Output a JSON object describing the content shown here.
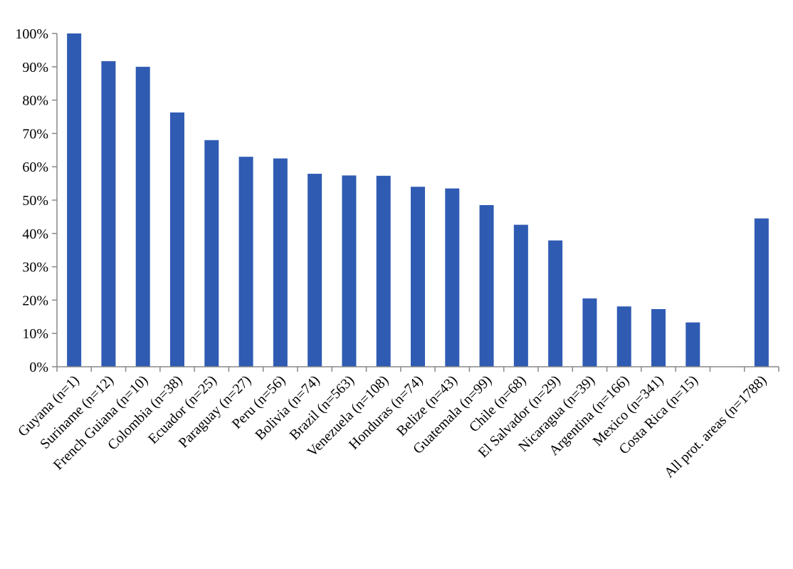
{
  "chart_data": {
    "type": "bar",
    "title": "",
    "xlabel": "",
    "ylabel": "",
    "ylim": [
      0,
      100
    ],
    "yticks": [
      "0%",
      "10%",
      "20%",
      "30%",
      "40%",
      "50%",
      "60%",
      "70%",
      "80%",
      "90%",
      "100%"
    ],
    "grid": false,
    "legend": "none",
    "bar_color": "#2f5bb3",
    "categories": [
      "Guyana (n=1)",
      "Suriname (n=12)",
      "French Guiana (n=10)",
      "Colombia (n=38)",
      "Ecuador (n=25)",
      "Paraguay (n=27)",
      "Peru (n=56)",
      "Bolivia (n=74)",
      "Brazil (n=563)",
      "Venezuela (n=108)",
      "Honduras (n=74)",
      "Belize (n=43)",
      "Guatemala (n=99)",
      "Chile (n=68)",
      "El Salvador (n=29)",
      "Nicaragua (n=39)",
      "Argentina (n=166)",
      "Mexico (n=341)",
      "Costa Rica (n=15)",
      "",
      "All prot. areas (n=1788)"
    ],
    "values": [
      100,
      91.7,
      90,
      76.3,
      68,
      63,
      62.5,
      57.9,
      57.4,
      57.3,
      54,
      53.5,
      48.5,
      42.6,
      37.9,
      20.5,
      18.1,
      17.3,
      13.3,
      null,
      44.5
    ]
  }
}
